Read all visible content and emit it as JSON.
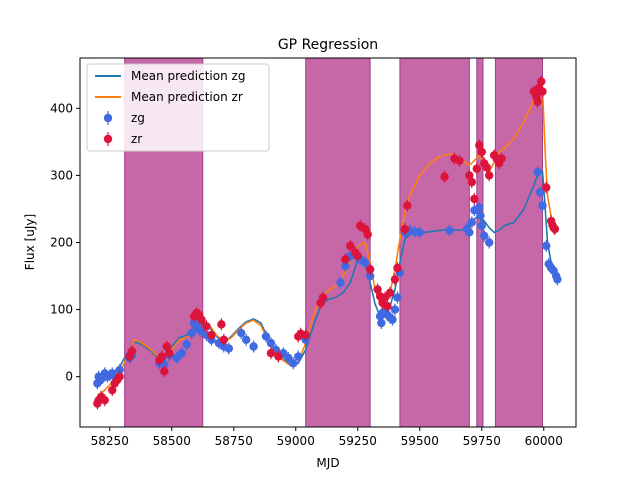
{
  "chart_data": {
    "type": "line",
    "title": "GP Regression",
    "xlabel": "MJD",
    "ylabel": "Flux [uJy]",
    "xlim": [
      58130,
      60130
    ],
    "ylim": [
      -75,
      475
    ],
    "xticks": [
      58250,
      58500,
      58750,
      59000,
      59250,
      59500,
      59750,
      60000
    ],
    "xtick_labels": [
      "58250",
      "58500",
      "58750",
      "59000",
      "59250",
      "59500",
      "59750",
      "60000"
    ],
    "yticks": [
      0,
      100,
      200,
      300,
      400
    ],
    "ytick_labels": [
      "0",
      "100",
      "200",
      "300",
      "400"
    ],
    "colors": {
      "zg_line": "#1f77b4",
      "zr_line": "#ff7f0e",
      "zg_points": "#4169e1",
      "zr_points": "#dc143c",
      "span": "#c0569e"
    },
    "shaded_spans": [
      [
        58310,
        58625
      ],
      [
        59040,
        59300
      ],
      [
        59420,
        59700
      ],
      [
        59730,
        59755
      ],
      [
        59805,
        59995
      ]
    ],
    "legend": {
      "position": "upper-left",
      "entries": [
        {
          "label": "Mean prediction zg",
          "kind": "line",
          "series": "zg_line"
        },
        {
          "label": "Mean prediction zr",
          "kind": "line",
          "series": "zr_line"
        },
        {
          "label": "zg",
          "kind": "errorbar",
          "series": "zg_points"
        },
        {
          "label": "zr",
          "kind": "errorbar",
          "series": "zr_points"
        }
      ]
    },
    "series": [
      {
        "name": "Mean prediction zg",
        "kind": "line",
        "x": [
          58200,
          58230,
          58260,
          58290,
          58320,
          58350,
          58380,
          58410,
          58440,
          58470,
          58500,
          58530,
          58560,
          58590,
          58620,
          58650,
          58680,
          58710,
          58740,
          58770,
          58800,
          58830,
          58860,
          58890,
          58920,
          58950,
          58980,
          59010,
          59040,
          59070,
          59100,
          59130,
          59160,
          59190,
          59220,
          59250,
          59280,
          59300,
          59320,
          59340,
          59360,
          59380,
          59400,
          59420,
          59440,
          59460,
          59480,
          59500,
          59540,
          59580,
          59620,
          59660,
          59700,
          59720,
          59740,
          59760,
          59780,
          59800,
          59820,
          59840,
          59880,
          59920,
          59960,
          59980,
          59995,
          60005,
          60015,
          60030,
          60050
        ],
        "y": [
          -10,
          -5,
          5,
          15,
          35,
          52,
          48,
          40,
          30,
          28,
          45,
          58,
          62,
          72,
          80,
          75,
          60,
          50,
          60,
          72,
          82,
          86,
          80,
          55,
          35,
          25,
          18,
          20,
          40,
          75,
          105,
          115,
          118,
          125,
          140,
          175,
          170,
          140,
          108,
          90,
          95,
          105,
          130,
          170,
          205,
          212,
          216,
          215,
          216,
          218,
          220,
          218,
          222,
          235,
          240,
          232,
          222,
          215,
          218,
          225,
          230,
          250,
          285,
          306,
          306,
          255,
          200,
          170,
          160
        ]
      },
      {
        "name": "Mean prediction zr",
        "kind": "line",
        "x": [
          58200,
          58230,
          58260,
          58290,
          58320,
          58350,
          58380,
          58410,
          58440,
          58470,
          58500,
          58530,
          58560,
          58590,
          58620,
          58650,
          58680,
          58710,
          58740,
          58770,
          58800,
          58830,
          58860,
          58890,
          58920,
          58950,
          58980,
          59010,
          59040,
          59070,
          59100,
          59130,
          59160,
          59190,
          59220,
          59250,
          59280,
          59300,
          59320,
          59340,
          59360,
          59380,
          59400,
          59420,
          59440,
          59460,
          59480,
          59500,
          59540,
          59580,
          59620,
          59660,
          59700,
          59720,
          59740,
          59760,
          59780,
          59800,
          59820,
          59840,
          59880,
          59920,
          59960,
          59980,
          59995,
          60005,
          60015,
          60030,
          60050
        ],
        "y": [
          -30,
          -20,
          -8,
          5,
          30,
          55,
          50,
          42,
          32,
          26,
          40,
          55,
          58,
          68,
          85,
          78,
          62,
          52,
          58,
          70,
          80,
          84,
          76,
          52,
          34,
          24,
          16,
          22,
          50,
          90,
          118,
          128,
          135,
          150,
          170,
          195,
          200,
          170,
          130,
          108,
          110,
          125,
          160,
          205,
          245,
          270,
          285,
          300,
          318,
          328,
          332,
          325,
          315,
          322,
          330,
          318,
          305,
          320,
          335,
          340,
          355,
          380,
          412,
          428,
          430,
          340,
          270,
          238,
          225
        ]
      },
      {
        "name": "zg",
        "kind": "scatter",
        "x": [
          58200,
          58205,
          58212,
          58220,
          58230,
          58240,
          58250,
          58260,
          58270,
          58290,
          58330,
          58340,
          58450,
          58460,
          58470,
          58490,
          58520,
          58540,
          58560,
          58580,
          58590,
          58600,
          58610,
          58620,
          58640,
          58660,
          58690,
          58710,
          58730,
          58780,
          58800,
          58830,
          58880,
          58900,
          58920,
          58950,
          58970,
          58990,
          59010,
          59040,
          59180,
          59200,
          59220,
          59240,
          59260,
          59280,
          59300,
          59340,
          59345,
          59350,
          59360,
          59370,
          59380,
          59390,
          59400,
          59410,
          59420,
          59440,
          59460,
          59480,
          59500,
          59620,
          59690,
          59700,
          59710,
          59720,
          59740,
          59745,
          59750,
          59760,
          59780,
          59975,
          59985,
          59995,
          60010,
          60020,
          60030,
          60040,
          60050,
          60055
        ],
        "y": [
          -10,
          0,
          -5,
          -2,
          5,
          0,
          2,
          5,
          0,
          10,
          28,
          32,
          20,
          25,
          18,
          32,
          28,
          35,
          48,
          65,
          80,
          75,
          70,
          68,
          62,
          55,
          50,
          45,
          42,
          65,
          55,
          45,
          60,
          50,
          40,
          35,
          28,
          20,
          30,
          55,
          140,
          165,
          180,
          182,
          175,
          170,
          150,
          90,
          80,
          95,
          100,
          92,
          88,
          85,
          100,
          118,
          155,
          215,
          218,
          216,
          215,
          218,
          220,
          215,
          230,
          248,
          252,
          240,
          225,
          210,
          200,
          305,
          275,
          255,
          195,
          168,
          162,
          158,
          150,
          145
        ]
      },
      {
        "name": "zr",
        "kind": "scatter",
        "x": [
          58200,
          58205,
          58215,
          58230,
          58260,
          58270,
          58280,
          58290,
          58330,
          58340,
          58450,
          58460,
          58470,
          58480,
          58490,
          58590,
          58600,
          58610,
          58620,
          58640,
          58660,
          58700,
          58710,
          58900,
          58930,
          59010,
          59020,
          59040,
          59100,
          59110,
          59200,
          59220,
          59240,
          59250,
          59260,
          59280,
          59290,
          59300,
          59330,
          59340,
          59350,
          59360,
          59370,
          59380,
          59400,
          59410,
          59440,
          59450,
          59600,
          59640,
          59660,
          59700,
          59710,
          59720,
          59730,
          59740,
          59750,
          59760,
          59770,
          59780,
          59800,
          59810,
          59820,
          59830,
          59960,
          59970,
          59975,
          59980,
          59990,
          59995,
          60010,
          60030,
          60035,
          60040,
          60045
        ],
        "y": [
          -40,
          -35,
          -30,
          -35,
          -20,
          -10,
          -5,
          0,
          30,
          38,
          25,
          30,
          8,
          45,
          35,
          90,
          95,
          92,
          85,
          75,
          62,
          78,
          55,
          35,
          30,
          60,
          64,
          62,
          110,
          118,
          175,
          195,
          185,
          180,
          225,
          220,
          212,
          160,
          130,
          120,
          110,
          118,
          105,
          125,
          145,
          162,
          220,
          255,
          298,
          325,
          322,
          300,
          290,
          265,
          310,
          345,
          335,
          318,
          312,
          300,
          330,
          325,
          318,
          325,
          425,
          418,
          410,
          430,
          440,
          425,
          282,
          232,
          226,
          222,
          220
        ]
      }
    ]
  }
}
